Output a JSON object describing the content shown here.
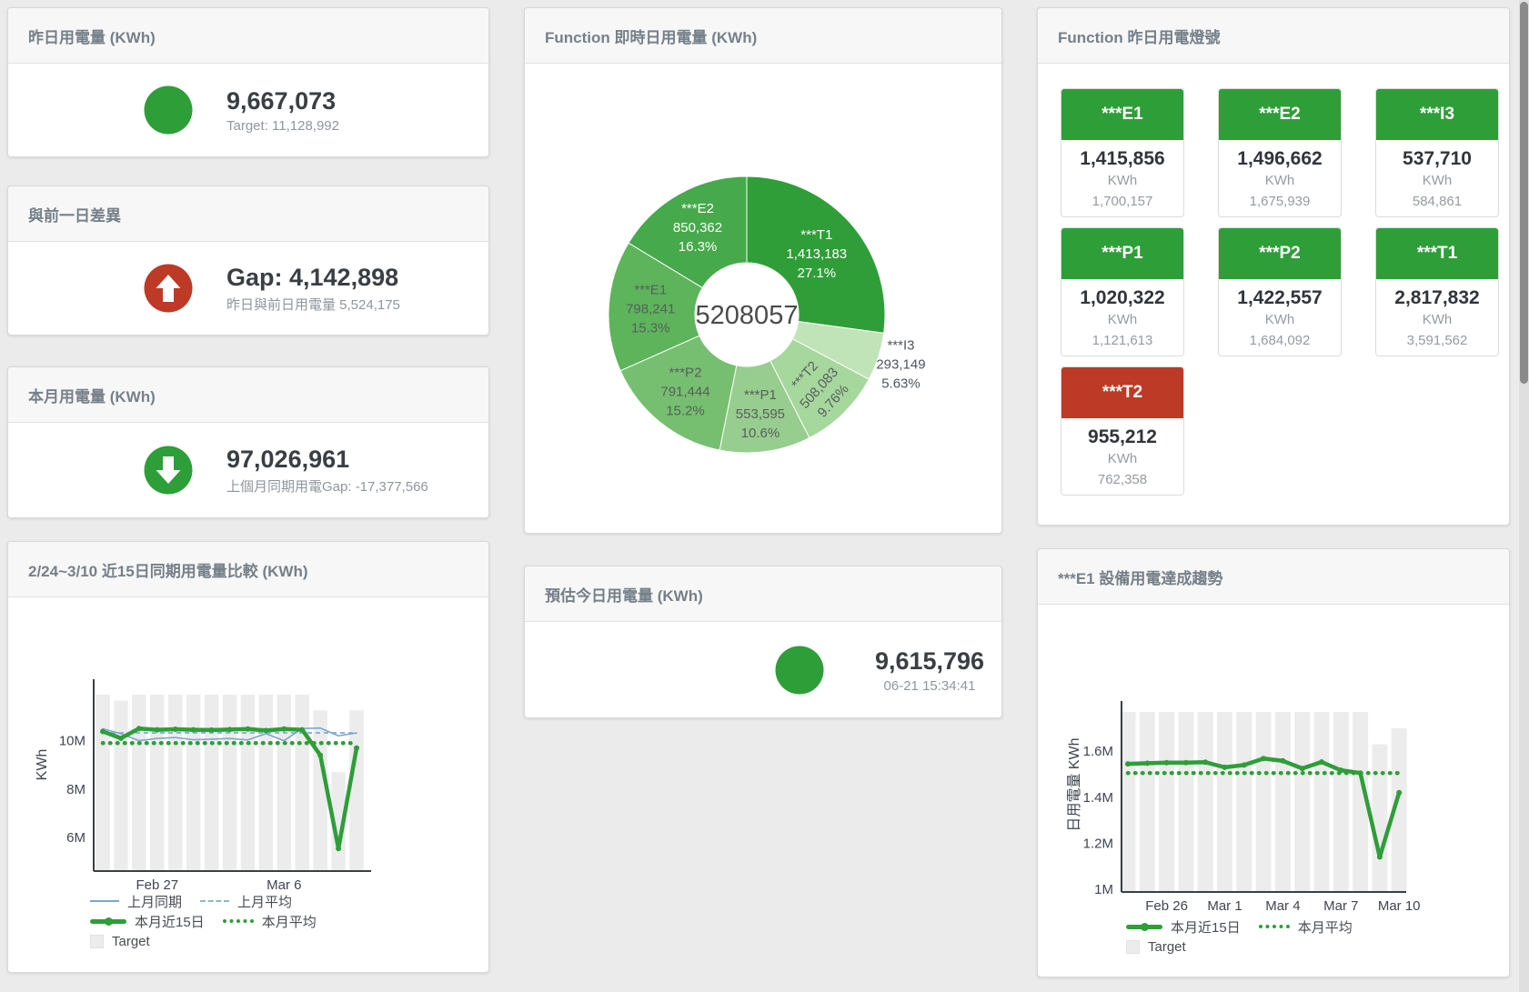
{
  "colors": {
    "green": "#2e9e38",
    "red": "#bc3a26",
    "blue_line": "#78a8ce",
    "blue_dash": "#8ab5d9",
    "target_bar": "#ececec"
  },
  "cards": {
    "yesterday": {
      "title": "昨日用電量 (KWh)",
      "value": "9,667,073",
      "subtitle": "Target: 11,128,992",
      "indicator": "circle",
      "color": "#2e9e38"
    },
    "gap_prev_day": {
      "title": "與前一日差異",
      "value": "Gap: 4,142,898",
      "subtitle": "昨日與前日用電量 5,524,175",
      "indicator": "up",
      "color": "#bc3a26"
    },
    "month": {
      "title": "本月用電量 (KWh)",
      "value": "97,026,961",
      "subtitle": "上個月同期用電Gap: -17,377,566",
      "indicator": "down",
      "color": "#2e9e38"
    },
    "estimate": {
      "title": "預估今日用電量 (KWh)",
      "value": "9,615,796",
      "subtitle": "06-21 15:34:41",
      "indicator": "circle",
      "color": "#2e9e38"
    },
    "lights": {
      "title": "Function 昨日用電燈號",
      "unit": "KWh",
      "tiles": [
        {
          "name": "***E1",
          "value": "1,415,856",
          "target": "1,700,157",
          "status": "green",
          "color": "#2e9e38"
        },
        {
          "name": "***E2",
          "value": "1,496,662",
          "target": "1,675,939",
          "status": "green",
          "color": "#2e9e38"
        },
        {
          "name": "***I3",
          "value": "537,710",
          "target": "584,861",
          "status": "green",
          "color": "#2e9e38"
        },
        {
          "name": "***P1",
          "value": "1,020,322",
          "target": "1,121,613",
          "status": "green",
          "color": "#2e9e38"
        },
        {
          "name": "***P2",
          "value": "1,422,557",
          "target": "1,684,092",
          "status": "green",
          "color": "#2e9e38"
        },
        {
          "name": "***T1",
          "value": "2,817,832",
          "target": "3,591,562",
          "status": "green",
          "color": "#2e9e38"
        },
        {
          "name": "***T2",
          "value": "955,212",
          "target": "762,358",
          "status": "red",
          "color": "#bc3a26"
        }
      ]
    }
  },
  "chart_data": [
    {
      "type": "pie",
      "title": "Function 即時日用電量 (KWh)",
      "center_label": "5208057",
      "units": "KWh",
      "slices": [
        {
          "name": "***T1",
          "value": 1413183,
          "value_label": "1,413,183",
          "pct_label": "27.1%",
          "color": "#2f9e38",
          "text": "#ffffff",
          "r": 102
        },
        {
          "name": "***I3",
          "value": 293149,
          "value_label": "293,149",
          "pct_label": "5.63%",
          "color": "#c0e3b8",
          "text": "#4e555e",
          "r": 178,
          "outside": true
        },
        {
          "name": "***T2",
          "value": 508083,
          "value_label": "508,083",
          "pct_label": "9.76%",
          "color": "#a6d79d",
          "text": "#57605b",
          "r": 113,
          "rotate": -48
        },
        {
          "name": "***P1",
          "value": 553595,
          "value_label": "553,595",
          "pct_label": "10.6%",
          "color": "#97cd8e",
          "text": "#57605b",
          "r": 110
        },
        {
          "name": "***P2",
          "value": 791444,
          "value_label": "791,444",
          "pct_label": "15.2%",
          "color": "#76bf70",
          "text": "#57605b",
          "r": 108
        },
        {
          "name": "***E1",
          "value": 798241,
          "value_label": "798,241",
          "pct_label": "15.3%",
          "color": "#5db45b",
          "text": "#57605b",
          "r": 106
        },
        {
          "name": "***E2",
          "value": 850362,
          "value_label": "850,362",
          "pct_label": "16.3%",
          "color": "#46a94b",
          "text": "#ffffff",
          "r": 110
        }
      ]
    },
    {
      "type": "line+bar",
      "title": "2/24~3/10 近15日同期用電量比較 (KWh)",
      "ylabel": "KWh",
      "ylim": [
        4.62,
        12.16
      ],
      "yticks": [
        {
          "v": 6,
          "label": "6M"
        },
        {
          "v": 8,
          "label": "8M"
        },
        {
          "v": 10,
          "label": "10M"
        }
      ],
      "categories": [
        "2/24",
        "2/25",
        "2/26",
        "2/27",
        "2/28",
        "3/1",
        "3/2",
        "3/3",
        "3/4",
        "3/5",
        "3/6",
        "3/7",
        "3/8",
        "3/9",
        "3/10"
      ],
      "xticks": [
        {
          "i": 3,
          "label": "Feb 27"
        },
        {
          "i": 10,
          "label": "Mar 6"
        }
      ],
      "bars": {
        "name": "Target",
        "color": "#ececec",
        "values": [
          11.9,
          11.65,
          11.9,
          11.9,
          11.9,
          11.9,
          11.9,
          11.9,
          11.9,
          11.9,
          11.9,
          11.9,
          11.25,
          8.7,
          11.25
        ]
      },
      "series": [
        {
          "name": "上月平均",
          "color": "#8ab5d9",
          "style": "dashed",
          "width": 2,
          "values": [
            10.32,
            10.32,
            10.32,
            10.32,
            10.32,
            10.32,
            10.32,
            10.32,
            10.32,
            10.32,
            10.32,
            10.32,
            10.32,
            10.32,
            10.32
          ]
        },
        {
          "name": "本月平均",
          "color": "#2e9e38",
          "style": "dotted",
          "width": 4.5,
          "values": [
            9.9,
            9.9,
            9.9,
            9.9,
            9.9,
            9.9,
            9.9,
            9.9,
            9.9,
            9.9,
            9.9,
            9.9,
            9.9,
            9.9,
            9.9
          ]
        },
        {
          "name": "上月同期",
          "color": "#78a8ce",
          "style": "solid",
          "width": 1.6,
          "values": [
            10.49,
            10.29,
            10.0,
            10.09,
            10.13,
            10.04,
            10.06,
            10.09,
            10.03,
            10.29,
            10.0,
            10.5,
            10.52,
            10.2,
            10.32
          ]
        },
        {
          "name": "本月近15日",
          "color": "#2e9e38",
          "style": "solid",
          "width": 4.5,
          "markers": true,
          "values": [
            10.38,
            10.1,
            10.5,
            10.45,
            10.47,
            10.45,
            10.44,
            10.46,
            10.48,
            10.42,
            10.48,
            10.45,
            9.4,
            5.55,
            9.7
          ]
        }
      ],
      "legend": [
        [
          {
            "sw": "line",
            "label": "上月同期"
          },
          {
            "sw": "dash",
            "label": "上月平均"
          }
        ],
        [
          {
            "sw": "thick",
            "label": "本月近15日"
          },
          {
            "sw": "dot",
            "label": "本月平均"
          }
        ],
        [
          {
            "sw": "square",
            "label": "Target"
          }
        ]
      ]
    },
    {
      "type": "line+bar",
      "title": "***E1 設備用電達成趨勢",
      "ylabel": "日用電量 KWh",
      "ylim": [
        0.988,
        1.7785
      ],
      "yticks": [
        {
          "v": 1,
          "label": "1M"
        },
        {
          "v": 1.2,
          "label": "1.2M"
        },
        {
          "v": 1.4,
          "label": "1.4M"
        },
        {
          "v": 1.6,
          "label": "1.6M"
        }
      ],
      "categories": [
        "2/24",
        "2/25",
        "2/26",
        "2/27",
        "2/28",
        "3/1",
        "3/2",
        "3/3",
        "3/4",
        "3/5",
        "3/6",
        "3/7",
        "3/8",
        "3/9",
        "3/10"
      ],
      "xticks": [
        {
          "i": 2,
          "label": "Feb 26"
        },
        {
          "i": 5,
          "label": "Mar 1"
        },
        {
          "i": 8,
          "label": "Mar 4"
        },
        {
          "i": 11,
          "label": "Mar 7"
        },
        {
          "i": 14,
          "label": "Mar 10"
        }
      ],
      "bars": {
        "name": "Target",
        "color": "#ececec",
        "values": [
          1.77,
          1.77,
          1.77,
          1.77,
          1.77,
          1.77,
          1.77,
          1.77,
          1.77,
          1.77,
          1.77,
          1.77,
          1.77,
          1.63,
          1.7
        ]
      },
      "series": [
        {
          "name": "本月平均",
          "color": "#2e9e38",
          "style": "dotted",
          "width": 4.5,
          "values": [
            1.505,
            1.505,
            1.505,
            1.505,
            1.505,
            1.505,
            1.505,
            1.505,
            1.505,
            1.505,
            1.505,
            1.505,
            1.505,
            1.505,
            1.505
          ]
        },
        {
          "name": "本月近15日",
          "color": "#2e9e38",
          "style": "solid",
          "width": 4.5,
          "markers": true,
          "values": [
            1.545,
            1.548,
            1.55,
            1.55,
            1.552,
            1.53,
            1.54,
            1.568,
            1.558,
            1.525,
            1.553,
            1.517,
            1.505,
            1.14,
            1.42
          ]
        }
      ],
      "legend": [
        [
          {
            "sw": "thick",
            "label": "本月近15日"
          },
          {
            "sw": "dot",
            "label": "本月平均"
          }
        ],
        [
          {
            "sw": "square",
            "label": "Target"
          }
        ]
      ]
    }
  ]
}
